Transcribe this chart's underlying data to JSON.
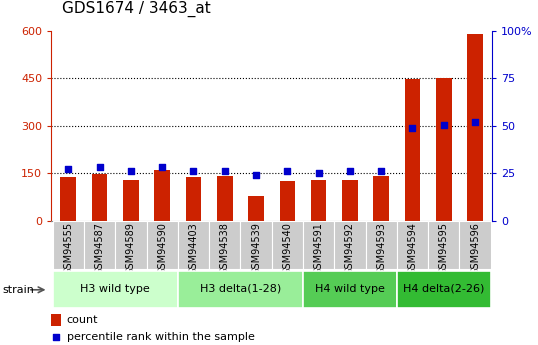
{
  "title": "GDS1674 / 3463_at",
  "samples": [
    "GSM94555",
    "GSM94587",
    "GSM94589",
    "GSM94590",
    "GSM94403",
    "GSM94538",
    "GSM94539",
    "GSM94540",
    "GSM94591",
    "GSM94592",
    "GSM94593",
    "GSM94594",
    "GSM94595",
    "GSM94596"
  ],
  "counts": [
    140,
    148,
    130,
    160,
    137,
    142,
    80,
    125,
    128,
    128,
    142,
    447,
    450,
    590
  ],
  "percentiles": [
    27.5,
    28.5,
    26.5,
    28.5,
    26.5,
    26.5,
    24.0,
    26.0,
    25.0,
    26.5,
    26.5,
    49.0,
    50.5,
    52.0
  ],
  "groups": [
    {
      "label": "H3 wild type",
      "start": 0,
      "end": 4
    },
    {
      "label": "H3 delta(1-28)",
      "start": 4,
      "end": 8
    },
    {
      "label": "H4 wild type",
      "start": 8,
      "end": 11
    },
    {
      "label": "H4 delta(2-26)",
      "start": 11,
      "end": 14
    }
  ],
  "group_colors": [
    "#ccffcc",
    "#99ee99",
    "#55cc55",
    "#33bb33"
  ],
  "ylim_left": [
    0,
    600
  ],
  "ylim_right": [
    0,
    100
  ],
  "yticks_left": [
    0,
    150,
    300,
    450,
    600
  ],
  "yticks_right": [
    0,
    25,
    50,
    75,
    100
  ],
  "bar_color": "#cc2200",
  "dot_color": "#0000cc",
  "background_color": "#ffffff",
  "left_axis_color": "#cc2200",
  "right_axis_color": "#0000cc",
  "sample_box_color": "#cccccc",
  "title_fontsize": 11,
  "tick_fontsize": 8,
  "label_fontsize": 7,
  "group_fontsize": 8,
  "legend_fontsize": 8,
  "bar_width": 0.5
}
